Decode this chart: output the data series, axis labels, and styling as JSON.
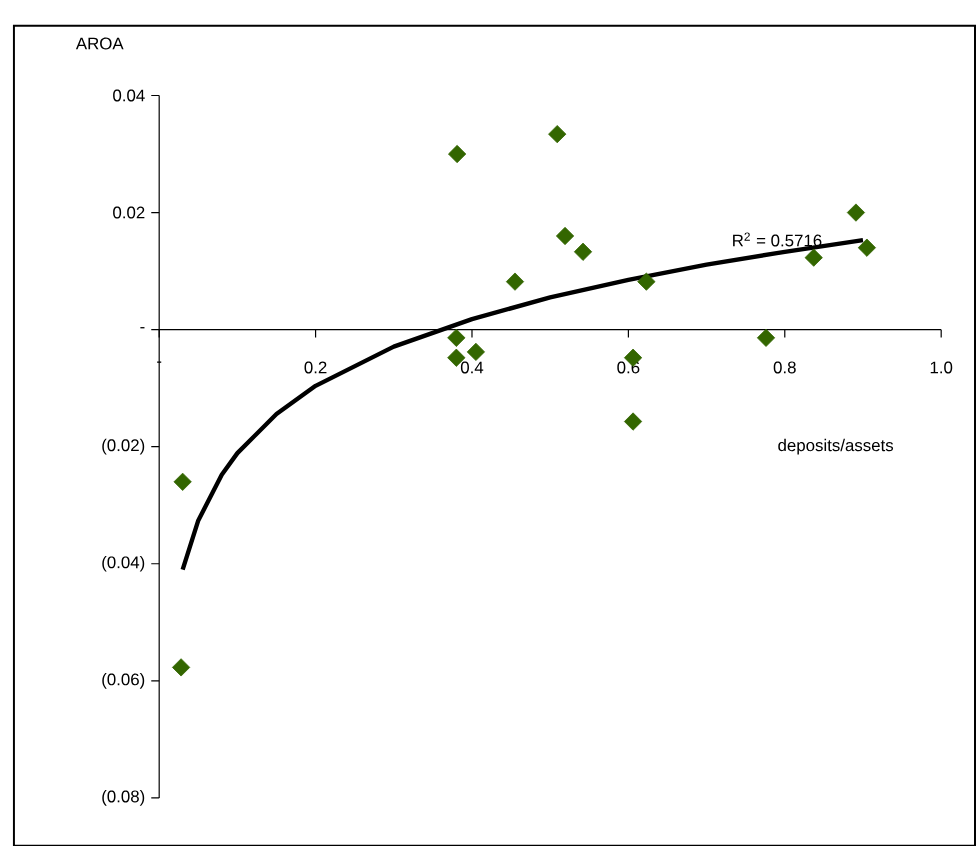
{
  "chart_data": {
    "type": "scatter",
    "xlabel": "deposits/assets",
    "ylabel": "AROA",
    "xlim": [
      0,
      1.0
    ],
    "ylim": [
      -0.08,
      0.04
    ],
    "xticks": [
      {
        "value": 0,
        "label": "-"
      },
      0.2,
      0.4,
      0.6,
      0.8,
      {
        "value": 1.0,
        "label": "1.0"
      }
    ],
    "yticks": [
      {
        "value": -0.08,
        "label": "(0.08)"
      },
      {
        "value": -0.06,
        "label": "(0.06)"
      },
      {
        "value": -0.04,
        "label": "(0.04)"
      },
      {
        "value": -0.02,
        "label": "(0.02)"
      },
      {
        "value": 0,
        "label": "-"
      },
      0.02,
      0.04
    ],
    "marker": "diamond",
    "annotations": [
      "R$^{2}$ = 0.5716"
    ],
    "series": [
      {
        "color": "#336600",
        "x": [
          0.03,
          0.028,
          0.381,
          0.38,
          0.38,
          0.405,
          0.509,
          0.519,
          0.542,
          0.455,
          0.623,
          0.606,
          0.606,
          0.776,
          0.837,
          0.891,
          0.905
        ],
        "values": [
          -0.026,
          -0.0577,
          0.03,
          -0.0014,
          -0.0048,
          -0.0038,
          0.0334,
          0.016,
          0.0133,
          0.0082,
          0.0082,
          -0.0048,
          -0.0157,
          -0.0014,
          0.0123,
          0.02,
          0.014
        ]
      },
      {
        "type": "line",
        "color": "#000000",
        "line_style": "solid",
        "marker": "none",
        "x": [
          0.03,
          0.05,
          0.08,
          0.1,
          0.15,
          0.2,
          0.3,
          0.4,
          0.5,
          0.6,
          0.7,
          0.8,
          0.9
        ],
        "values": [
          -0.041,
          -0.0326,
          -0.0248,
          -0.0211,
          -0.0144,
          -0.0096,
          -0.0029,
          0.0018,
          0.0055,
          0.0085,
          0.0111,
          0.0133,
          0.0153
        ]
      }
    ]
  }
}
